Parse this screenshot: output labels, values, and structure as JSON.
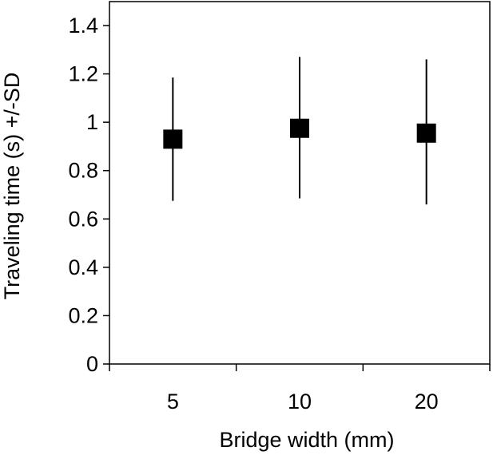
{
  "chart_data": {
    "type": "scatter",
    "categories": [
      "5",
      "10",
      "20"
    ],
    "series": [
      {
        "values": [
          0.93,
          0.975,
          0.955
        ],
        "sd_low": [
          0.675,
          0.685,
          0.66
        ],
        "sd_high": [
          1.185,
          1.27,
          1.26
        ]
      }
    ],
    "xlabel": "Bridge width (mm)",
    "ylabel": "Traveling time (s) +/-SD",
    "ylim": [
      0,
      1.4
    ],
    "yticks": [
      "0",
      "0.2",
      "0.4",
      "0.6",
      "0.8",
      "1",
      "1.2",
      "1.4"
    ],
    "grid": false,
    "legend": "none",
    "marker": "square",
    "colors": {
      "marker": "#000000",
      "axis": "#000000",
      "frame": "#000000"
    }
  }
}
